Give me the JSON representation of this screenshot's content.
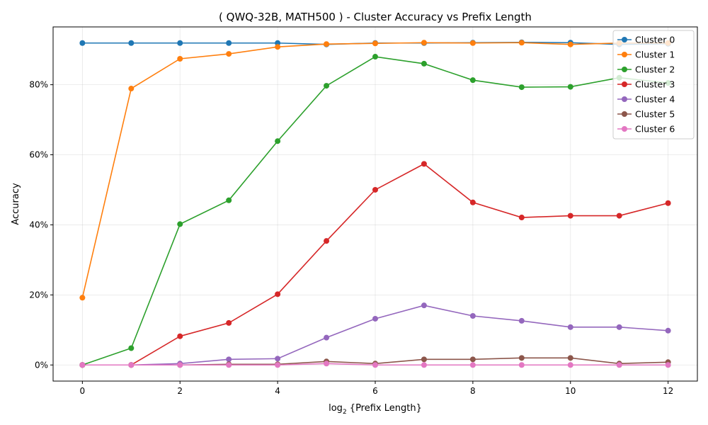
{
  "chart_data": {
    "type": "line",
    "title": "( QWQ-32B, MATH500 ) - Cluster Accuracy vs Prefix Length",
    "xlabel": "log",
    "xlabel_sub": "2",
    "xlabel_rest": " {Prefix Length}",
    "ylabel": "Accuracy",
    "x": [
      0,
      1,
      2,
      3,
      4,
      5,
      6,
      7,
      8,
      9,
      10,
      11,
      12
    ],
    "xticks": [
      0,
      2,
      4,
      6,
      8,
      10,
      12
    ],
    "xtick_labels": [
      "0",
      "2",
      "4",
      "6",
      "8",
      "10",
      "12"
    ],
    "yticks": [
      0,
      20,
      40,
      60,
      80
    ],
    "ytick_labels": [
      "0%",
      "20%",
      "40%",
      "60%",
      "80%"
    ],
    "xlim": [
      -0.6,
      12.6
    ],
    "ylim": [
      -4.6,
      96.5
    ],
    "grid": true,
    "legend_position": "top-right",
    "series": [
      {
        "name": "Cluster 0",
        "color": "#1f77b4",
        "values": [
          91.9,
          91.9,
          91.9,
          91.9,
          91.9,
          91.5,
          91.9,
          91.9,
          92.0,
          92.1,
          92.0,
          91.5,
          91.7
        ]
      },
      {
        "name": "Cluster 1",
        "color": "#ff7f0e",
        "values": [
          19.2,
          78.9,
          87.4,
          88.8,
          90.8,
          91.6,
          91.8,
          92.0,
          91.9,
          92.0,
          91.5,
          91.9,
          91.9
        ]
      },
      {
        "name": "Cluster 2",
        "color": "#2ca02c",
        "values": [
          0.0,
          4.8,
          40.2,
          47.0,
          63.9,
          79.7,
          88.0,
          86.0,
          81.3,
          79.3,
          79.4,
          82.0,
          80.5
        ]
      },
      {
        "name": "Cluster 3",
        "color": "#d62728",
        "values": [
          0.0,
          0.0,
          8.2,
          12.0,
          20.2,
          35.4,
          50.0,
          57.4,
          46.4,
          42.1,
          42.6,
          42.6,
          46.2
        ]
      },
      {
        "name": "Cluster 4",
        "color": "#9467bd",
        "values": [
          0.0,
          0.0,
          0.4,
          1.6,
          1.8,
          7.8,
          13.2,
          17.0,
          14.0,
          12.6,
          10.8,
          10.8,
          9.8
        ]
      },
      {
        "name": "Cluster 5",
        "color": "#8c564b",
        "values": [
          0.0,
          0.0,
          0.0,
          0.2,
          0.2,
          1.0,
          0.4,
          1.6,
          1.6,
          2.0,
          2.0,
          0.4,
          0.8
        ]
      },
      {
        "name": "Cluster 6",
        "color": "#e377c2",
        "values": [
          0.0,
          0.0,
          0.0,
          0.0,
          0.0,
          0.4,
          0.0,
          0.0,
          0.0,
          0.0,
          0.0,
          0.0,
          0.0
        ]
      }
    ]
  }
}
